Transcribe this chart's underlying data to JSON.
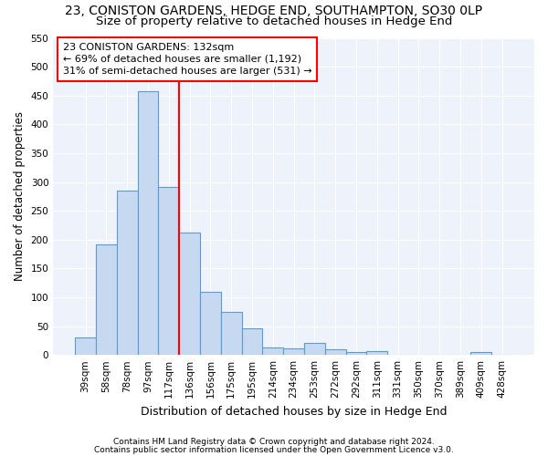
{
  "title": "23, CONISTON GARDENS, HEDGE END, SOUTHAMPTON, SO30 0LP",
  "subtitle": "Size of property relative to detached houses in Hedge End",
  "xlabel": "Distribution of detached houses by size in Hedge End",
  "ylabel": "Number of detached properties",
  "bar_categories": [
    "39sqm",
    "58sqm",
    "78sqm",
    "97sqm",
    "117sqm",
    "136sqm",
    "156sqm",
    "175sqm",
    "195sqm",
    "214sqm",
    "234sqm",
    "253sqm",
    "272sqm",
    "292sqm",
    "311sqm",
    "331sqm",
    "350sqm",
    "370sqm",
    "389sqm",
    "409sqm",
    "428sqm"
  ],
  "bar_values": [
    30,
    191,
    285,
    458,
    291,
    213,
    109,
    74,
    46,
    13,
    12,
    21,
    9,
    5,
    6,
    0,
    0,
    0,
    0,
    5,
    0
  ],
  "bar_color": "#c6d9f0",
  "bar_edgecolor": "#5b9bd5",
  "vline_x_index": 4.5,
  "vline_color": "red",
  "annotation_line1": "23 CONISTON GARDENS: 132sqm",
  "annotation_line2": "← 69% of detached houses are smaller (1,192)",
  "annotation_line3": "31% of semi-detached houses are larger (531) →",
  "annotation_box_color": "white",
  "annotation_box_edgecolor": "red",
  "ylim": [
    0,
    550
  ],
  "yticks": [
    0,
    50,
    100,
    150,
    200,
    250,
    300,
    350,
    400,
    450,
    500,
    550
  ],
  "footer1": "Contains HM Land Registry data © Crown copyright and database right 2024.",
  "footer2": "Contains public sector information licensed under the Open Government Licence v3.0.",
  "title_fontsize": 10,
  "subtitle_fontsize": 9.5,
  "xlabel_fontsize": 9,
  "ylabel_fontsize": 8.5,
  "tick_fontsize": 7.5,
  "annotation_fontsize": 8,
  "footer_fontsize": 6.5,
  "bg_color": "#eef2fa"
}
